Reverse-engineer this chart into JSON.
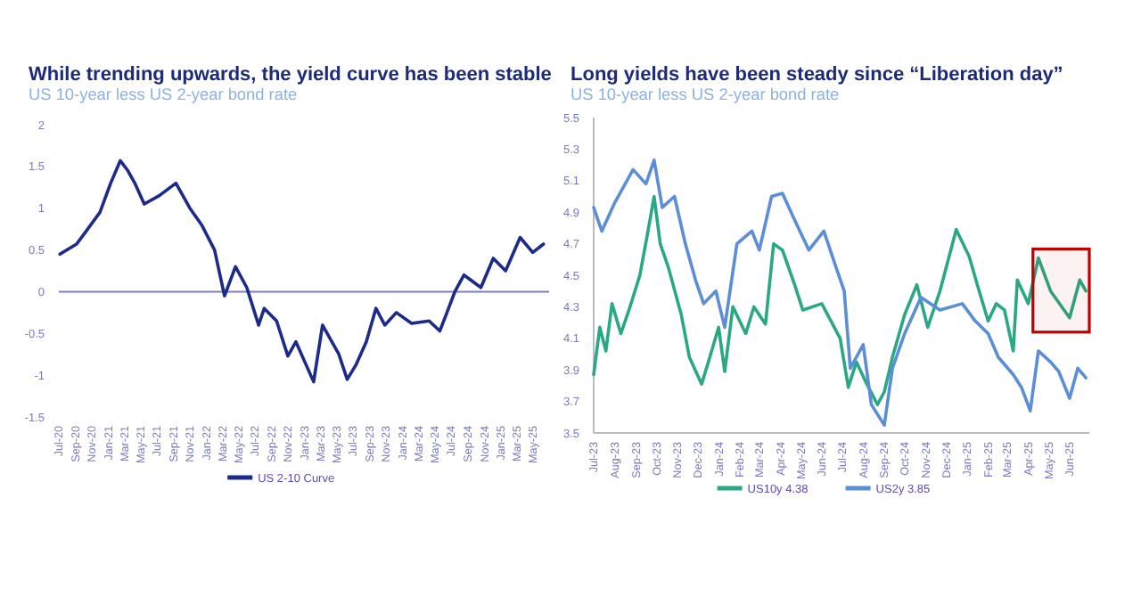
{
  "chart_data": [
    {
      "type": "line",
      "title": "While trending upwards, the yield curve has been stable",
      "subtitle": "US 10-year less US 2-year bond rate",
      "xlim": [
        "2020-07",
        "2025-07"
      ],
      "ylim": [
        -1.5,
        2
      ],
      "yticks": [
        -1.5,
        -1,
        -0.5,
        0,
        0.5,
        1,
        1.5,
        2
      ],
      "xticks": [
        {
          "value": "2020-07",
          "label": "Jul-20"
        },
        {
          "value": "2020-09",
          "label": "Sep-20"
        },
        {
          "value": "2020-11",
          "label": "Nov-20"
        },
        {
          "value": "2021-01",
          "label": "Jan-21"
        },
        {
          "value": "2021-03",
          "label": "Mar-21"
        },
        {
          "value": "2021-05",
          "label": "May-21"
        },
        {
          "value": "2021-07",
          "label": "Jul-21"
        },
        {
          "value": "2021-09",
          "label": "Sep-21"
        },
        {
          "value": "2021-11",
          "label": "Nov-21"
        },
        {
          "value": "2022-01",
          "label": "Jan-22"
        },
        {
          "value": "2022-03",
          "label": "Mar-22"
        },
        {
          "value": "2022-05",
          "label": "May-22"
        },
        {
          "value": "2022-07",
          "label": "Jul-22"
        },
        {
          "value": "2022-09",
          "label": "Sep-22"
        },
        {
          "value": "2022-11",
          "label": "Nov-22"
        },
        {
          "value": "2023-01",
          "label": "Jan-23"
        },
        {
          "value": "2023-03",
          "label": "Mar-23"
        },
        {
          "value": "2023-05",
          "label": "May-23"
        },
        {
          "value": "2023-07",
          "label": "Jul-23"
        },
        {
          "value": "2023-09",
          "label": "Sep-23"
        },
        {
          "value": "2023-11",
          "label": "Nov-23"
        },
        {
          "value": "2024-01",
          "label": "Jan-24"
        },
        {
          "value": "2024-03",
          "label": "Mar-24"
        },
        {
          "value": "2024-05",
          "label": "May-24"
        },
        {
          "value": "2024-07",
          "label": "Jul-24"
        },
        {
          "value": "2024-09",
          "label": "Sep-24"
        },
        {
          "value": "2024-11",
          "label": "Nov-24"
        },
        {
          "value": "2025-01",
          "label": "Jan-25"
        },
        {
          "value": "2025-03",
          "label": "Mar-25"
        },
        {
          "value": "2025-05",
          "label": "May-25"
        }
      ],
      "ref_lines": [
        {
          "axis": "y",
          "value": 0,
          "color": "#7a7ad0"
        }
      ],
      "legend": "bottom",
      "grid": false,
      "series": [
        {
          "name": "US 2-10 Curve",
          "color": "#1c2a8c",
          "x": [
            "2020-07-05",
            "2020-09-05",
            "2020-10-05",
            "2020-12-01",
            "2021-01-10",
            "2021-02-15",
            "2021-03-15",
            "2021-04-10",
            "2021-05-15",
            "2021-07-10",
            "2021-09-10",
            "2021-11-01",
            "2021-12-15",
            "2022-02-01",
            "2022-03-10",
            "2022-04-20",
            "2022-06-01",
            "2022-07-15",
            "2022-08-05",
            "2022-09-20",
            "2022-11-01",
            "2022-12-01",
            "2023-02-05",
            "2023-03-10",
            "2023-04-05",
            "2023-05-10",
            "2023-06-10",
            "2023-07-12",
            "2023-08-20",
            "2023-09-25",
            "2023-10-28",
            "2023-12-10",
            "2024-02-05",
            "2024-04-10",
            "2024-05-20",
            "2024-06-12",
            "2024-07-15",
            "2024-08-18",
            "2024-10-20",
            "2024-12-05",
            "2025-01-20",
            "2025-03-15",
            "2025-05-01",
            "2025-06-10"
          ],
          "values": [
            0.45,
            0.57,
            0.7,
            0.95,
            1.3,
            1.57,
            1.45,
            1.3,
            1.05,
            1.15,
            1.3,
            1.0,
            0.8,
            0.5,
            -0.05,
            0.3,
            0.05,
            -0.4,
            -0.2,
            -0.35,
            -0.77,
            -0.6,
            -1.08,
            -0.4,
            -0.55,
            -0.75,
            -1.05,
            -0.88,
            -0.6,
            -0.2,
            -0.4,
            -0.25,
            -0.38,
            -0.35,
            -0.47,
            -0.28,
            0.0,
            0.2,
            0.05,
            0.4,
            0.25,
            0.65,
            0.47,
            0.57
          ]
        }
      ]
    },
    {
      "type": "line",
      "title": "Long yields have been steady since “Liberation day”",
      "subtitle": "US 10-year less US 2-year bond rate",
      "xlim": [
        "2023-07-01",
        "2025-06-30"
      ],
      "ylim": [
        3.5,
        5.5
      ],
      "yticks": [
        3.5,
        3.7,
        3.9,
        4.1,
        4.3,
        4.5,
        4.7,
        4.9,
        5.1,
        5.3,
        5.5
      ],
      "xticks": [
        {
          "value": "2023-07",
          "label": "Jul-23"
        },
        {
          "value": "2023-08",
          "label": "Aug-23"
        },
        {
          "value": "2023-09",
          "label": "Sep-23"
        },
        {
          "value": "2023-10",
          "label": "Oct-23"
        },
        {
          "value": "2023-11",
          "label": "Nov-23"
        },
        {
          "value": "2023-12",
          "label": "Dec-23"
        },
        {
          "value": "2024-01",
          "label": "Jan-24"
        },
        {
          "value": "2024-02",
          "label": "Feb-24"
        },
        {
          "value": "2024-03",
          "label": "Mar-24"
        },
        {
          "value": "2024-04",
          "label": "Apr-24"
        },
        {
          "value": "2024-05",
          "label": "May-24"
        },
        {
          "value": "2024-06",
          "label": "Jun-24"
        },
        {
          "value": "2024-07",
          "label": "Jul-24"
        },
        {
          "value": "2024-08",
          "label": "Aug-24"
        },
        {
          "value": "2024-09",
          "label": "Sep-24"
        },
        {
          "value": "2024-10",
          "label": "Oct-24"
        },
        {
          "value": "2024-11",
          "label": "Nov-24"
        },
        {
          "value": "2024-12",
          "label": "Dec-24"
        },
        {
          "value": "2025-01",
          "label": "Jan-25"
        },
        {
          "value": "2025-02",
          "label": "Feb-25"
        },
        {
          "value": "2025-03",
          "label": "Mar-25"
        },
        {
          "value": "2025-04",
          "label": "Apr-25"
        },
        {
          "value": "2025-05",
          "label": "May-25"
        },
        {
          "value": "2025-06",
          "label": "Jun-25"
        }
      ],
      "bands": [
        {
          "axis": "x",
          "from": "2025-04-08",
          "to": "2025-06-30",
          "color": "#c00000"
        }
      ],
      "legend": "bottom",
      "grid": false,
      "series": [
        {
          "name": "US10y 4.38",
          "color": "#2aa884",
          "x": [
            "2023-07-01",
            "2023-07-10",
            "2023-07-19",
            "2023-07-28",
            "2023-08-10",
            "2023-08-22",
            "2023-09-07",
            "2023-09-19",
            "2023-09-28",
            "2023-10-07",
            "2023-10-19",
            "2023-11-07",
            "2023-11-19",
            "2023-12-07",
            "2023-12-19",
            "2024-01-01",
            "2024-01-10",
            "2024-01-22",
            "2024-02-10",
            "2024-02-22",
            "2024-03-10",
            "2024-03-22",
            "2024-04-04",
            "2024-04-22",
            "2024-05-04",
            "2024-06-01",
            "2024-06-28",
            "2024-07-10",
            "2024-07-22",
            "2024-08-04",
            "2024-08-22",
            "2024-09-01",
            "2024-09-13",
            "2024-10-01",
            "2024-10-19",
            "2024-11-04",
            "2024-11-22",
            "2024-12-16",
            "2025-01-04",
            "2025-01-16",
            "2025-02-01",
            "2025-02-13",
            "2025-02-25",
            "2025-03-10",
            "2025-03-16",
            "2025-04-01",
            "2025-04-16",
            "2025-05-04",
            "2025-06-01",
            "2025-06-16",
            "2025-06-25"
          ],
          "values": [
            3.87,
            4.17,
            4.02,
            4.32,
            4.13,
            4.28,
            4.5,
            4.78,
            5.0,
            4.7,
            4.55,
            4.25,
            3.98,
            3.81,
            3.98,
            4.17,
            3.89,
            4.3,
            4.13,
            4.3,
            4.19,
            4.7,
            4.66,
            4.44,
            4.28,
            4.32,
            4.1,
            3.79,
            3.95,
            3.83,
            3.68,
            3.76,
            3.98,
            4.25,
            4.44,
            4.17,
            4.4,
            4.79,
            4.62,
            4.44,
            4.21,
            4.32,
            4.28,
            4.02,
            4.47,
            4.32,
            4.61,
            4.4,
            4.23,
            4.47,
            4.4
          ]
        },
        {
          "name": "US2y 3.85",
          "color": "#5b8ed6",
          "x": [
            "2023-07-01",
            "2023-07-13",
            "2023-08-01",
            "2023-08-28",
            "2023-09-16",
            "2023-09-28",
            "2023-10-10",
            "2023-10-28",
            "2023-11-13",
            "2023-11-28",
            "2023-12-10",
            "2023-12-28",
            "2024-01-10",
            "2024-01-28",
            "2024-02-19",
            "2024-03-01",
            "2024-03-19",
            "2024-04-04",
            "2024-04-22",
            "2024-05-13",
            "2024-06-04",
            "2024-06-22",
            "2024-07-04",
            "2024-07-13",
            "2024-08-01",
            "2024-08-13",
            "2024-09-01",
            "2024-09-13",
            "2024-10-01",
            "2024-10-25",
            "2024-11-22",
            "2024-12-25",
            "2025-01-13",
            "2025-02-01",
            "2025-02-16",
            "2025-03-10",
            "2025-03-22",
            "2025-04-04",
            "2025-04-16",
            "2025-05-04",
            "2025-05-16",
            "2025-06-01",
            "2025-06-13",
            "2025-06-25"
          ],
          "values": [
            4.93,
            4.78,
            4.96,
            5.17,
            5.08,
            5.23,
            4.93,
            5.0,
            4.7,
            4.47,
            4.32,
            4.4,
            4.17,
            4.7,
            4.78,
            4.66,
            5.0,
            5.02,
            4.85,
            4.66,
            4.78,
            4.55,
            4.4,
            3.91,
            4.06,
            3.68,
            3.55,
            3.91,
            4.13,
            4.36,
            4.28,
            4.32,
            4.21,
            4.13,
            3.98,
            3.87,
            3.79,
            3.64,
            4.02,
            3.95,
            3.89,
            3.72,
            3.91,
            3.85
          ]
        }
      ]
    }
  ]
}
